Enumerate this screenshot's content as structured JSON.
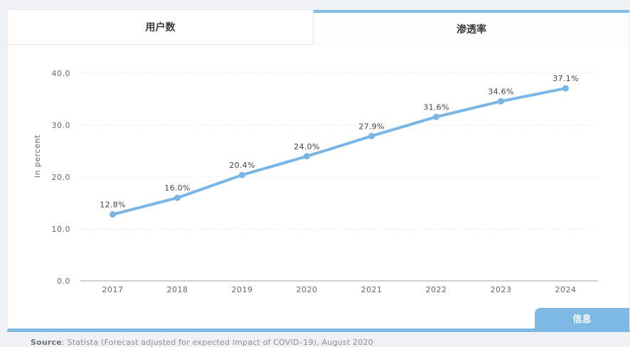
{
  "tabs": [
    {
      "label": "用户数",
      "active": false
    },
    {
      "label": "渗透率",
      "active": true
    }
  ],
  "chart_data": {
    "type": "line",
    "x": [
      "2017",
      "2018",
      "2019",
      "2020",
      "2021",
      "2022",
      "2023",
      "2024"
    ],
    "values": [
      12.8,
      16.0,
      20.4,
      24.0,
      27.9,
      31.6,
      34.6,
      37.1
    ],
    "point_labels": [
      "12.8%",
      "16.0%",
      "20.4%",
      "24.0%",
      "27.9%",
      "31.6%",
      "34.6%",
      "37.1%"
    ],
    "ylabel": "in percent",
    "yticks": [
      0,
      10,
      20,
      30,
      40
    ],
    "ytick_labels": [
      "0.0",
      "10.0",
      "20.0",
      "30.0",
      "40.0"
    ],
    "ylim": [
      0,
      45.5
    ],
    "grid": "horizontal-dotted",
    "legend": "none"
  },
  "source": {
    "prefix": "Source",
    "text": ": Statista (Forecast adjusted for expected impact of COVID–19), August 2020"
  },
  "info_button": {
    "label": "信息"
  },
  "colors": {
    "accent": "#7db9e3",
    "accent_light": "#85bce6",
    "line": "#79b5e5",
    "grid": "#d8dadc",
    "axis": "#9aa0a6",
    "tick_text": "#666666",
    "point_label_text": "#454545"
  }
}
